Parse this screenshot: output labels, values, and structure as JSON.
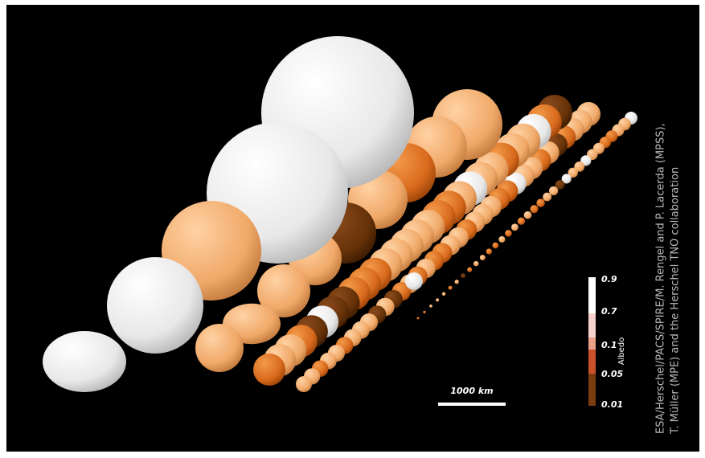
{
  "colorbar": {
    "title": "Albedo",
    "labels": [
      "0.9",
      "0.7",
      "0.1",
      "0.05",
      "0.01"
    ]
  },
  "scale_bar": {
    "label": "1000 km"
  },
  "credit": {
    "lines": [
      "ESA/Herschel/PACS/SPIRE/M. Rengel and P. Lacerda (MPSS),",
      "T. Müller (MPE) and the Herschel TNO collaboration"
    ]
  }
}
